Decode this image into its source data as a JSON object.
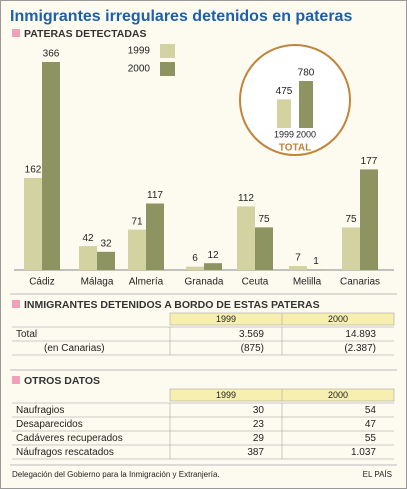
{
  "header": {
    "title": "Inmigrantes irregulares detenidos en pateras"
  },
  "chart_data": {
    "type": "bar",
    "title": "PATERAS DETECTADAS",
    "categories": [
      "Cádiz",
      "Málaga",
      "Almería",
      "Granada",
      "Ceuta",
      "Melilla",
      "Canarias"
    ],
    "series": [
      {
        "name": "1999",
        "color": "#d3d3a2",
        "values": [
          162,
          42,
          71,
          6,
          112,
          7,
          75
        ]
      },
      {
        "name": "2000",
        "color": "#8e9362",
        "values": [
          366,
          32,
          117,
          12,
          75,
          1,
          177
        ]
      }
    ],
    "inset": {
      "title": "TOTAL",
      "categories": [
        "1999",
        "2000"
      ],
      "values": [
        475,
        780
      ]
    }
  },
  "tables": [
    {
      "title": "INMIGRANTES DETENIDOS A BORDO DE ESTAS PATERAS",
      "columns": [
        "1999",
        "2000"
      ],
      "rows": [
        [
          "Total",
          "3.569",
          "14.893"
        ],
        [
          "(en Canarias)",
          "(875)",
          "(2.387)"
        ]
      ]
    },
    {
      "title": "OTROS DATOS",
      "columns": [
        "1999",
        "2000"
      ],
      "rows": [
        [
          "Naufragios",
          "30",
          "54"
        ],
        [
          "Desaparecidos",
          "23",
          "47"
        ],
        [
          "Cadáveres recuperados",
          "29",
          "55"
        ],
        [
          "Náufragos rescatados",
          "387",
          "1.037"
        ]
      ]
    }
  ],
  "footer": {
    "source": "Delegación del Gobierno para la Inmigración y Extranjería.",
    "credit": "EL PAÍS"
  }
}
